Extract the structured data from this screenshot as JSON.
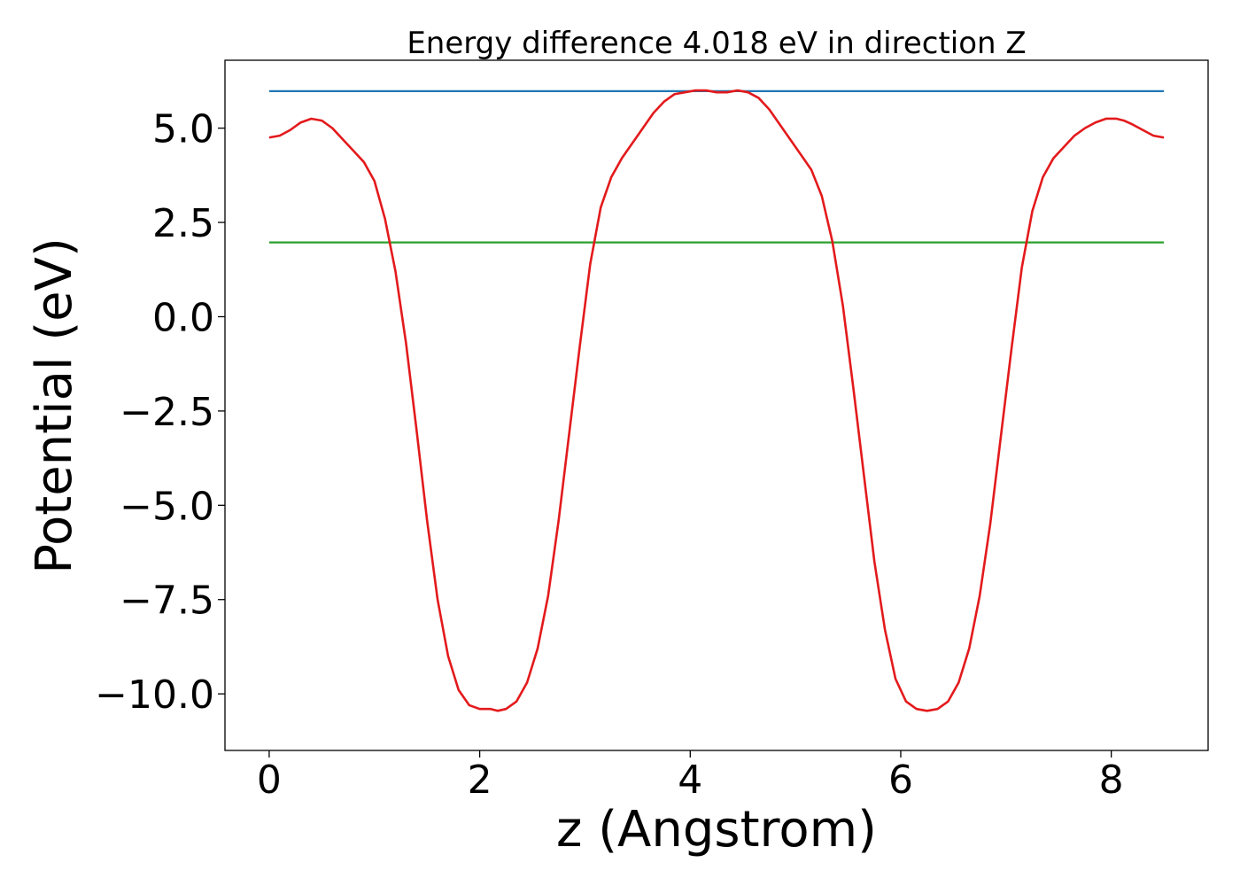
{
  "chart_data": {
    "type": "line",
    "title": "Energy difference 4.018 eV in direction Z",
    "xlabel": "z (Angstrom)",
    "ylabel": "Potential (eV)",
    "xlim": [
      -0.42,
      8.92
    ],
    "ylim": [
      -11.5,
      6.8
    ],
    "grid": false,
    "legend": "none",
    "xticks": [
      {
        "value": 0,
        "label": "0"
      },
      {
        "value": 2,
        "label": "2"
      },
      {
        "value": 4,
        "label": "4"
      },
      {
        "value": 6,
        "label": "6"
      },
      {
        "value": 8,
        "label": "8"
      }
    ],
    "yticks": [
      {
        "value": 5.0,
        "label": "5.0"
      },
      {
        "value": 2.5,
        "label": "2.5"
      },
      {
        "value": 0.0,
        "label": "0.0"
      },
      {
        "value": -2.5,
        "label": "−2.5"
      },
      {
        "value": -5.0,
        "label": "−5.0"
      },
      {
        "value": -7.5,
        "label": "−7.5"
      },
      {
        "value": -10.0,
        "label": "−10.0"
      }
    ],
    "series": [
      {
        "kind": "hline",
        "color": "#1f77b4",
        "x": [
          0,
          8.5
        ],
        "y": [
          5.98,
          5.98
        ]
      },
      {
        "kind": "hline",
        "color": "#2ca02c",
        "x": [
          0,
          8.5
        ],
        "y": [
          1.97,
          1.97
        ]
      },
      {
        "kind": "curve",
        "color": "#e31a1c",
        "x": [
          0,
          0.1,
          0.2,
          0.3,
          0.4,
          0.5,
          0.6,
          0.7,
          0.8,
          0.9,
          1.0,
          1.1,
          1.2,
          1.3,
          1.4,
          1.5,
          1.6,
          1.7,
          1.8,
          1.9,
          2.0,
          2.1,
          2.17,
          2.25,
          2.35,
          2.45,
          2.55,
          2.65,
          2.75,
          2.85,
          2.95,
          3.05,
          3.15,
          3.25,
          3.35,
          3.45,
          3.55,
          3.65,
          3.75,
          3.85,
          3.95,
          4.05,
          4.15,
          4.25,
          4.35,
          4.45,
          4.55,
          4.65,
          4.75,
          4.85,
          4.95,
          5.05,
          5.15,
          5.25,
          5.35,
          5.45,
          5.55,
          5.65,
          5.75,
          5.85,
          5.95,
          6.05,
          6.15,
          6.25,
          6.35,
          6.45,
          6.55,
          6.65,
          6.75,
          6.85,
          6.95,
          7.05,
          7.15,
          7.25,
          7.35,
          7.45,
          7.55,
          7.65,
          7.75,
          7.85,
          7.95,
          8.05,
          8.12,
          8.2,
          8.3,
          8.4,
          8.5
        ],
        "y": [
          4.75,
          4.8,
          4.95,
          5.15,
          5.25,
          5.2,
          5.0,
          4.7,
          4.4,
          4.1,
          3.6,
          2.6,
          1.2,
          -0.7,
          -3.0,
          -5.4,
          -7.5,
          -9.0,
          -9.9,
          -10.3,
          -10.4,
          -10.4,
          -10.45,
          -10.4,
          -10.2,
          -9.7,
          -8.8,
          -7.4,
          -5.4,
          -3.1,
          -0.8,
          1.4,
          2.9,
          3.7,
          4.2,
          4.6,
          5.0,
          5.4,
          5.7,
          5.9,
          5.95,
          6.0,
          6.0,
          5.95,
          5.95,
          6.0,
          5.95,
          5.8,
          5.5,
          5.1,
          4.7,
          4.3,
          3.9,
          3.2,
          2.0,
          0.3,
          -1.9,
          -4.2,
          -6.5,
          -8.3,
          -9.6,
          -10.2,
          -10.4,
          -10.45,
          -10.4,
          -10.2,
          -9.7,
          -8.8,
          -7.4,
          -5.5,
          -3.2,
          -0.9,
          1.3,
          2.8,
          3.7,
          4.2,
          4.5,
          4.8,
          5.0,
          5.15,
          5.25,
          5.25,
          5.2,
          5.1,
          4.95,
          4.8,
          4.75
        ]
      }
    ]
  }
}
